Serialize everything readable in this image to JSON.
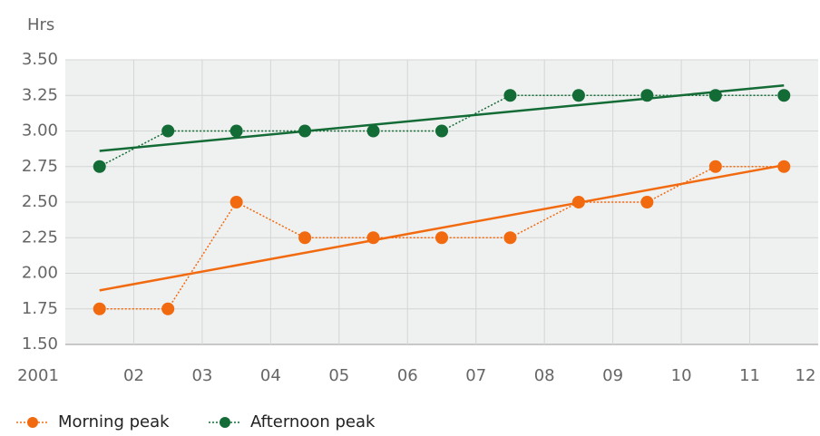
{
  "chart_data": {
    "type": "line",
    "y_label": "Hrs",
    "x": [
      2001.5,
      2002.5,
      2003.5,
      2004.5,
      2005.5,
      2006.5,
      2007.5,
      2008.5,
      2009.5,
      2010.5,
      2011.5
    ],
    "series": [
      {
        "name": "Morning peak",
        "color": "#f26a10",
        "values": [
          1.75,
          1.75,
          2.5,
          2.25,
          2.25,
          2.25,
          2.25,
          2.5,
          2.5,
          2.75,
          2.75
        ],
        "trend": [
          1.88,
          2.76
        ]
      },
      {
        "name": "Afternoon peak",
        "color": "#136b35",
        "values": [
          2.75,
          3.0,
          3.0,
          3.0,
          3.0,
          3.0,
          3.25,
          3.25,
          3.25,
          3.25,
          3.25
        ],
        "trend": [
          2.86,
          3.32
        ]
      }
    ],
    "xlim": [
      2001,
      2012
    ],
    "xticks": [
      {
        "value": 2001,
        "label": "2001"
      },
      {
        "value": 2002,
        "label": "02"
      },
      {
        "value": 2003,
        "label": "03"
      },
      {
        "value": 2004,
        "label": "04"
      },
      {
        "value": 2005,
        "label": "05"
      },
      {
        "value": 2006,
        "label": "06"
      },
      {
        "value": 2007,
        "label": "07"
      },
      {
        "value": 2008,
        "label": "08"
      },
      {
        "value": 2009,
        "label": "09"
      },
      {
        "value": 2010,
        "label": "10"
      },
      {
        "value": 2011,
        "label": "11"
      },
      {
        "value": 2012,
        "label": "12"
      }
    ],
    "ylim": [
      1.5,
      3.5
    ],
    "yticks": [
      {
        "value": 1.5,
        "label": "1.50"
      },
      {
        "value": 1.75,
        "label": "1.75"
      },
      {
        "value": 2.0,
        "label": "2.00"
      },
      {
        "value": 2.25,
        "label": "2.25"
      },
      {
        "value": 2.5,
        "label": "2.50"
      },
      {
        "value": 2.75,
        "label": "2.75"
      },
      {
        "value": 3.0,
        "label": "3.00"
      },
      {
        "value": 3.25,
        "label": "3.25"
      },
      {
        "value": 3.5,
        "label": "3.50"
      }
    ],
    "grid": true
  }
}
